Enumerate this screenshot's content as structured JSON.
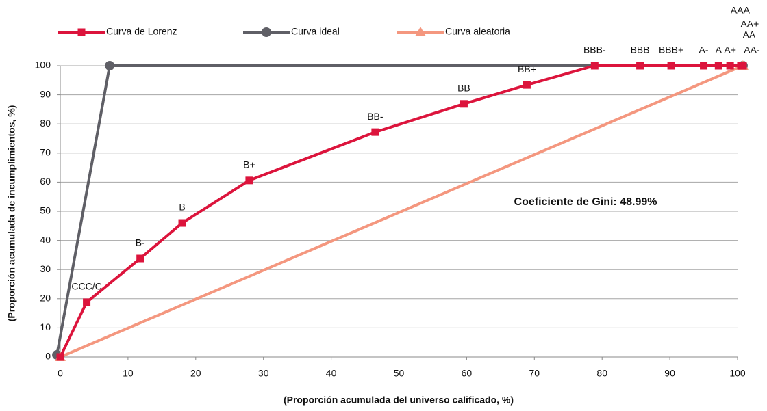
{
  "chart_data": {
    "type": "line",
    "annotation": "Coeficiente de Gini: 48.99%",
    "x_label": "(Proporción acumulada del universo calificado, %)",
    "y_label": "(Proporción acumulada de incumplimientos, %)",
    "xlim": [
      0,
      100
    ],
    "ylim": [
      0,
      100
    ],
    "xticks": [
      0,
      10,
      20,
      30,
      40,
      50,
      60,
      70,
      80,
      90,
      100
    ],
    "yticks": [
      0,
      10,
      20,
      30,
      40,
      50,
      60,
      70,
      80,
      90,
      100
    ],
    "grid": true,
    "series": [
      {
        "name": "Curva de Lorenz",
        "color": "#dc143c",
        "marker": "square",
        "x": [
          0,
          3.9,
          11.8,
          18,
          27.9,
          46.5,
          59.6,
          68.9,
          78.9,
          85.6,
          90.2,
          95,
          97.2,
          98.9,
          100.5,
          100.7,
          100.8,
          100.8
        ],
        "values": [
          0,
          18.8,
          33.8,
          46,
          60.6,
          77.2,
          86.9,
          93.4,
          100,
          100,
          100,
          100,
          100,
          100,
          100,
          100,
          100,
          100
        ],
        "labels": [
          null,
          "CCC/C",
          "B-",
          "B",
          "B+",
          "BB-",
          "BB",
          "BB+",
          "BBB-",
          "BBB",
          "BBB+",
          "A-",
          "A",
          "A+",
          "AA-",
          "AA",
          "AA+",
          "AAA"
        ]
      },
      {
        "name": "Curva ideal",
        "color": "#5f5f66",
        "marker": "circle",
        "x": [
          -0.5,
          7.3,
          100.8
        ],
        "values": [
          0.7,
          100,
          100
        ]
      },
      {
        "name": "Curva aleatoria",
        "color": "#f4977f",
        "marker": "triangle",
        "x": [
          0,
          100.8
        ],
        "values": [
          0,
          100
        ]
      }
    ]
  }
}
